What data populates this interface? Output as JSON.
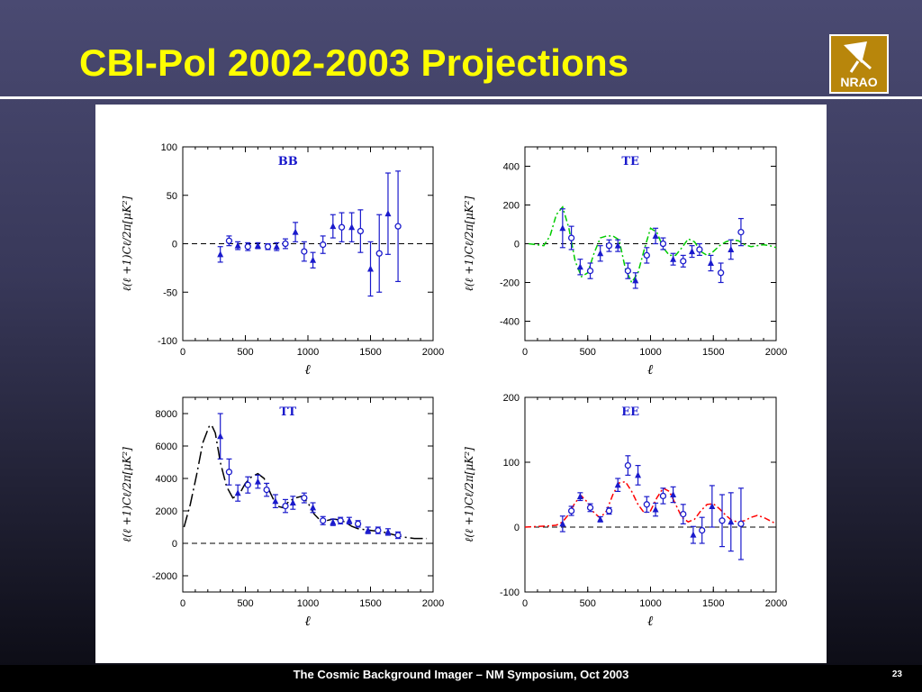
{
  "title": "CBI-Pol 2002-2003 Projections",
  "footer": "The Cosmic Background Imager – NM Symposium, Oct 2003",
  "page_number": "23",
  "logo": {
    "text": "NRAO",
    "icon": "nrao-radio-dish-logo",
    "colors": {
      "background": "#b8860b",
      "mark": "#ffffff"
    }
  },
  "colors": {
    "title": "#ffff00",
    "data": "#1a1acc",
    "te_model": "#00cc00",
    "ee_model": "#ff0000",
    "tt_model": "#000000"
  },
  "chart_data": [
    {
      "type": "scatter",
      "title": "BB",
      "xlabel": "ℓ",
      "ylabel": "ℓ(ℓ +1)Cℓ/2π[μK²]",
      "xlim": [
        0,
        2000
      ],
      "ylim": [
        -100,
        100
      ],
      "xticks": [
        "0",
        "500",
        "1000",
        "1500",
        "2000"
      ],
      "yticks": [
        "-100",
        "-50",
        "0",
        "50",
        "100"
      ],
      "zero_line": true,
      "model": null,
      "model_color": null,
      "points": [
        {
          "x": 300,
          "y": -11,
          "err": 8,
          "marker": "triangle"
        },
        {
          "x": 370,
          "y": 3,
          "err": 5,
          "marker": "circle"
        },
        {
          "x": 440,
          "y": -2,
          "err": 4,
          "marker": "triangle"
        },
        {
          "x": 520,
          "y": -3,
          "err": 4,
          "marker": "circle"
        },
        {
          "x": 600,
          "y": -2,
          "err": 3,
          "marker": "triangle"
        },
        {
          "x": 680,
          "y": -3,
          "err": 3,
          "marker": "circle"
        },
        {
          "x": 750,
          "y": -3,
          "err": 4,
          "marker": "triangle"
        },
        {
          "x": 820,
          "y": 0,
          "err": 5,
          "marker": "circle"
        },
        {
          "x": 900,
          "y": 12,
          "err": 10,
          "marker": "triangle"
        },
        {
          "x": 970,
          "y": -8,
          "err": 10,
          "marker": "circle"
        },
        {
          "x": 1040,
          "y": -17,
          "err": 8,
          "marker": "triangle"
        },
        {
          "x": 1120,
          "y": -1,
          "err": 9,
          "marker": "circle"
        },
        {
          "x": 1200,
          "y": 18,
          "err": 12,
          "marker": "triangle"
        },
        {
          "x": 1270,
          "y": 17,
          "err": 15,
          "marker": "circle"
        },
        {
          "x": 1350,
          "y": 17,
          "err": 15,
          "marker": "triangle"
        },
        {
          "x": 1420,
          "y": 13,
          "err": 22,
          "marker": "circle"
        },
        {
          "x": 1500,
          "y": -26,
          "err": 28,
          "marker": "triangle"
        },
        {
          "x": 1570,
          "y": -10,
          "err": 40,
          "marker": "circle"
        },
        {
          "x": 1640,
          "y": 31,
          "err": 42,
          "marker": "triangle"
        },
        {
          "x": 1720,
          "y": 18,
          "err": 57,
          "marker": "circle"
        }
      ]
    },
    {
      "type": "scatter",
      "title": "TE",
      "xlabel": "ℓ",
      "ylabel": "ℓ(ℓ +1)Cℓ/2π[μK²]",
      "xlim": [
        0,
        2000
      ],
      "ylim": [
        -500,
        500
      ],
      "xticks": [
        "0",
        "500",
        "1000",
        "1500",
        "2000"
      ],
      "yticks": [
        "-400",
        "-200",
        "0",
        "200",
        "400"
      ],
      "zero_line": true,
      "model_color": "#00cc00",
      "model_style": "dash-dot",
      "model": {
        "x": [
          30,
          150,
          200,
          250,
          300,
          350,
          400,
          450,
          500,
          550,
          600,
          650,
          700,
          750,
          800,
          850,
          900,
          950,
          1000,
          1050,
          1100,
          1150,
          1200,
          1250,
          1300,
          1350,
          1400,
          1450,
          1500,
          1550,
          1600,
          1650,
          1700,
          1750,
          1800,
          1850,
          1900,
          1950,
          2000
        ],
        "y": [
          0,
          -10,
          40,
          150,
          190,
          80,
          -90,
          -170,
          -150,
          -50,
          30,
          40,
          40,
          20,
          -130,
          -200,
          -150,
          -30,
          80,
          60,
          -20,
          -60,
          -60,
          -20,
          25,
          10,
          -40,
          -60,
          -40,
          -10,
          10,
          20,
          15,
          -5,
          -15,
          -10,
          -5,
          -10,
          -20
        ]
      },
      "points": [
        {
          "x": 300,
          "y": 80,
          "err": 100,
          "marker": "triangle"
        },
        {
          "x": 370,
          "y": 30,
          "err": 60,
          "marker": "circle"
        },
        {
          "x": 440,
          "y": -120,
          "err": 40,
          "marker": "triangle"
        },
        {
          "x": 520,
          "y": -140,
          "err": 40,
          "marker": "circle"
        },
        {
          "x": 600,
          "y": -50,
          "err": 40,
          "marker": "triangle"
        },
        {
          "x": 670,
          "y": -10,
          "err": 30,
          "marker": "circle"
        },
        {
          "x": 740,
          "y": -10,
          "err": 30,
          "marker": "triangle"
        },
        {
          "x": 820,
          "y": -140,
          "err": 40,
          "marker": "circle"
        },
        {
          "x": 880,
          "y": -190,
          "err": 40,
          "marker": "triangle"
        },
        {
          "x": 970,
          "y": -60,
          "err": 40,
          "marker": "circle"
        },
        {
          "x": 1040,
          "y": 40,
          "err": 40,
          "marker": "triangle"
        },
        {
          "x": 1100,
          "y": 0,
          "err": 30,
          "marker": "circle"
        },
        {
          "x": 1180,
          "y": -80,
          "err": 30,
          "marker": "triangle"
        },
        {
          "x": 1260,
          "y": -90,
          "err": 30,
          "marker": "circle"
        },
        {
          "x": 1330,
          "y": -40,
          "err": 30,
          "marker": "triangle"
        },
        {
          "x": 1390,
          "y": -30,
          "err": 30,
          "marker": "circle"
        },
        {
          "x": 1480,
          "y": -100,
          "err": 40,
          "marker": "triangle"
        },
        {
          "x": 1560,
          "y": -150,
          "err": 50,
          "marker": "circle"
        },
        {
          "x": 1640,
          "y": -30,
          "err": 50,
          "marker": "triangle"
        },
        {
          "x": 1720,
          "y": 60,
          "err": 70,
          "marker": "circle"
        }
      ]
    },
    {
      "type": "scatter",
      "title": "TT",
      "xlabel": "ℓ",
      "ylabel": "ℓ(ℓ +1)Cℓ/2π[μK²]",
      "xlim": [
        0,
        2000
      ],
      "ylim": [
        -3000,
        9000
      ],
      "xticks": [
        "0",
        "500",
        "1000",
        "1500",
        "2000"
      ],
      "yticks": [
        "-2000",
        "0",
        "2000",
        "4000",
        "6000",
        "8000"
      ],
      "zero_line": true,
      "model_color": "#000000",
      "model_style": "long-dash",
      "model": {
        "x": [
          10,
          60,
          110,
          160,
          210,
          230,
          260,
          300,
          350,
          400,
          450,
          500,
          550,
          600,
          650,
          700,
          750,
          800,
          850,
          900,
          950,
          1000,
          1050,
          1100,
          1150,
          1200,
          1250,
          1300,
          1350,
          1400,
          1450,
          1500,
          1550,
          1600,
          1650,
          1700,
          1750,
          1800,
          1850,
          1900,
          1950
        ],
        "y": [
          1000,
          2400,
          4200,
          6200,
          7200,
          7300,
          6800,
          5000,
          3500,
          2800,
          3000,
          3700,
          4100,
          4300,
          4000,
          3100,
          2300,
          2200,
          2600,
          2800,
          2900,
          2500,
          1800,
          1400,
          1400,
          1500,
          1450,
          1300,
          1050,
          900,
          850,
          800,
          750,
          700,
          600,
          500,
          400,
          350,
          300,
          300,
          300
        ]
      },
      "points": [
        {
          "x": 300,
          "y": 6600,
          "err": 1400,
          "marker": "triangle"
        },
        {
          "x": 370,
          "y": 4400,
          "err": 800,
          "marker": "circle"
        },
        {
          "x": 440,
          "y": 3100,
          "err": 500,
          "marker": "triangle"
        },
        {
          "x": 520,
          "y": 3600,
          "err": 500,
          "marker": "circle"
        },
        {
          "x": 600,
          "y": 3800,
          "err": 400,
          "marker": "triangle"
        },
        {
          "x": 670,
          "y": 3300,
          "err": 400,
          "marker": "circle"
        },
        {
          "x": 740,
          "y": 2600,
          "err": 400,
          "marker": "triangle"
        },
        {
          "x": 820,
          "y": 2300,
          "err": 400,
          "marker": "circle"
        },
        {
          "x": 880,
          "y": 2500,
          "err": 400,
          "marker": "triangle"
        },
        {
          "x": 970,
          "y": 2800,
          "err": 300,
          "marker": "circle"
        },
        {
          "x": 1040,
          "y": 2200,
          "err": 300,
          "marker": "triangle"
        },
        {
          "x": 1120,
          "y": 1400,
          "err": 250,
          "marker": "circle"
        },
        {
          "x": 1200,
          "y": 1300,
          "err": 200,
          "marker": "triangle"
        },
        {
          "x": 1260,
          "y": 1400,
          "err": 200,
          "marker": "circle"
        },
        {
          "x": 1330,
          "y": 1400,
          "err": 200,
          "marker": "triangle"
        },
        {
          "x": 1400,
          "y": 1200,
          "err": 200,
          "marker": "circle"
        },
        {
          "x": 1480,
          "y": 800,
          "err": 200,
          "marker": "triangle"
        },
        {
          "x": 1560,
          "y": 800,
          "err": 200,
          "marker": "circle"
        },
        {
          "x": 1640,
          "y": 700,
          "err": 200,
          "marker": "triangle"
        },
        {
          "x": 1720,
          "y": 500,
          "err": 200,
          "marker": "circle"
        }
      ]
    },
    {
      "type": "scatter",
      "title": "EE",
      "xlabel": "ℓ",
      "ylabel": "ℓ(ℓ +1)Cℓ/2π[μK²]",
      "xlim": [
        0,
        2000
      ],
      "ylim": [
        -100,
        200
      ],
      "xticks": [
        "0",
        "500",
        "1000",
        "1500",
        "2000"
      ],
      "yticks": [
        "-100",
        "0",
        "100",
        "200"
      ],
      "zero_line": true,
      "model_color": "#ff0000",
      "model_style": "dash-dot",
      "model": {
        "x": [
          0,
          100,
          200,
          250,
          300,
          350,
          400,
          450,
          500,
          550,
          600,
          650,
          700,
          750,
          800,
          850,
          900,
          950,
          1000,
          1050,
          1100,
          1150,
          1200,
          1250,
          1300,
          1350,
          1400,
          1450,
          1500,
          1550,
          1600,
          1650,
          1700,
          1750,
          1800,
          1850,
          1900,
          1950,
          2000
        ],
        "y": [
          0,
          1,
          2,
          3,
          8,
          20,
          38,
          48,
          38,
          22,
          14,
          25,
          50,
          68,
          70,
          55,
          35,
          22,
          25,
          45,
          60,
          55,
          35,
          15,
          8,
          12,
          25,
          35,
          36,
          28,
          18,
          10,
          8,
          10,
          15,
          18,
          15,
          10,
          5
        ]
      },
      "points": [
        {
          "x": 300,
          "y": 5,
          "err": 12,
          "marker": "triangle"
        },
        {
          "x": 370,
          "y": 25,
          "err": 7,
          "marker": "circle"
        },
        {
          "x": 440,
          "y": 47,
          "err": 6,
          "marker": "triangle"
        },
        {
          "x": 520,
          "y": 30,
          "err": 6,
          "marker": "circle"
        },
        {
          "x": 600,
          "y": 12,
          "err": 4,
          "marker": "triangle"
        },
        {
          "x": 670,
          "y": 25,
          "err": 5,
          "marker": "circle"
        },
        {
          "x": 740,
          "y": 65,
          "err": 10,
          "marker": "triangle"
        },
        {
          "x": 820,
          "y": 95,
          "err": 15,
          "marker": "circle"
        },
        {
          "x": 900,
          "y": 80,
          "err": 15,
          "marker": "triangle"
        },
        {
          "x": 970,
          "y": 35,
          "err": 12,
          "marker": "circle"
        },
        {
          "x": 1040,
          "y": 27,
          "err": 10,
          "marker": "triangle"
        },
        {
          "x": 1100,
          "y": 48,
          "err": 12,
          "marker": "circle"
        },
        {
          "x": 1180,
          "y": 50,
          "err": 12,
          "marker": "triangle"
        },
        {
          "x": 1260,
          "y": 20,
          "err": 15,
          "marker": "circle"
        },
        {
          "x": 1340,
          "y": -12,
          "err": 13,
          "marker": "triangle"
        },
        {
          "x": 1410,
          "y": -5,
          "err": 20,
          "marker": "circle"
        },
        {
          "x": 1490,
          "y": 32,
          "err": 32,
          "marker": "triangle"
        },
        {
          "x": 1570,
          "y": 10,
          "err": 40,
          "marker": "circle"
        },
        {
          "x": 1640,
          "y": 8,
          "err": 45,
          "marker": "triangle"
        },
        {
          "x": 1720,
          "y": 5,
          "err": 55,
          "marker": "circle"
        }
      ]
    }
  ]
}
